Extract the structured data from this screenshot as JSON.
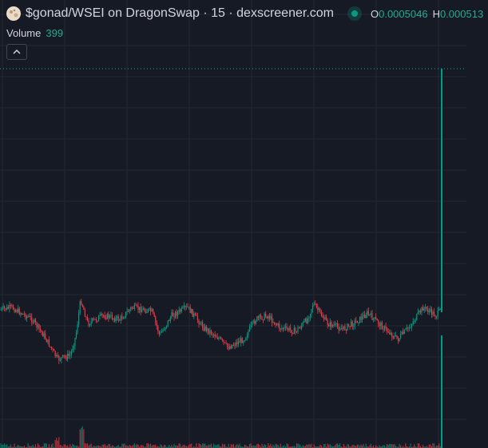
{
  "legend": {
    "title": "$gonad/WSEI on DragonSwap · 15 · dexscreener.com",
    "o_label": "O",
    "o_value": "0.0005046",
    "h_label": "H",
    "h_value": "0.000513"
  },
  "volume": {
    "label": "Volume",
    "value": "399"
  },
  "colors": {
    "background": "#161a25",
    "grid": "#242832",
    "up": "#089981",
    "down": "#f23645",
    "text": "#d1d4dc",
    "accent": "#22ab94"
  },
  "icons": {
    "collapse": "chevron-up-icon",
    "logo": "token-logo-icon",
    "status": "live-status-icon"
  }
}
